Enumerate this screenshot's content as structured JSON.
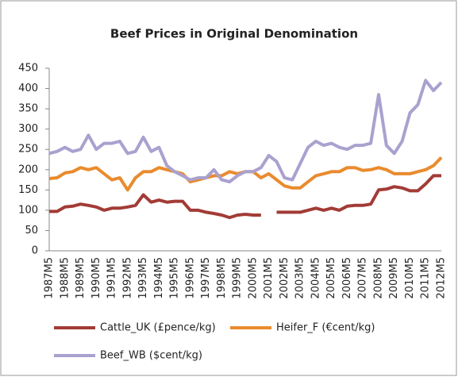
{
  "chart_data": {
    "type": "line",
    "title": "Beef Prices in Original Denomination",
    "categories": [
      "1987M5",
      null,
      "1988M5",
      null,
      "1989M5",
      null,
      "1990M5",
      null,
      "1991M5",
      null,
      "1992M5",
      null,
      "1993M5",
      null,
      "1994M5",
      null,
      "1995M5",
      null,
      "1996M5",
      null,
      "1997M5",
      null,
      "1998M5",
      null,
      "1999M5",
      null,
      "2000M5",
      null,
      "2001M5",
      null,
      "2002M5",
      null,
      "2003M5",
      null,
      "2004M5",
      null,
      "2005M5",
      null,
      "2006M5",
      null,
      "2007M5",
      null,
      "2008M5",
      null,
      "2009M5",
      null,
      "2010M5",
      null,
      "2011M5",
      null,
      "2012M5"
    ],
    "series": [
      {
        "name": "Cattle_UK (£pence/kg)",
        "color": "#a23b36",
        "values": [
          97,
          97,
          108,
          110,
          115,
          112,
          108,
          100,
          105,
          105,
          108,
          112,
          138,
          120,
          125,
          120,
          122,
          122,
          100,
          100,
          95,
          92,
          88,
          82,
          88,
          90,
          88,
          88,
          null,
          95,
          95,
          95,
          95,
          100,
          105,
          100,
          105,
          100,
          110,
          112,
          112,
          115,
          150,
          152,
          158,
          155,
          148,
          148,
          165,
          185,
          185
        ]
      },
      {
        "name": "Heifer_F (€cent/kg)",
        "color": "#e98b2e",
        "values": [
          178,
          180,
          192,
          195,
          205,
          200,
          205,
          190,
          175,
          180,
          150,
          180,
          195,
          195,
          205,
          200,
          195,
          190,
          170,
          175,
          180,
          185,
          185,
          195,
          190,
          195,
          195,
          180,
          190,
          175,
          160,
          155,
          155,
          170,
          185,
          190,
          195,
          195,
          205,
          205,
          198,
          200,
          205,
          200,
          190,
          190,
          190,
          195,
          200,
          210,
          230
        ]
      },
      {
        "name": "Beef_WB ($cent/kg)",
        "color": "#aaa1cf",
        "values": [
          240,
          245,
          255,
          245,
          250,
          285,
          250,
          265,
          265,
          270,
          240,
          245,
          280,
          245,
          255,
          210,
          195,
          185,
          175,
          180,
          180,
          200,
          175,
          170,
          185,
          195,
          195,
          205,
          235,
          220,
          180,
          175,
          215,
          255,
          270,
          260,
          265,
          255,
          250,
          260,
          260,
          265,
          385,
          260,
          240,
          270,
          340,
          360,
          420,
          395,
          415
        ]
      }
    ],
    "ylim": [
      0,
      450
    ],
    "yticks": [
      0,
      50,
      100,
      150,
      200,
      250,
      300,
      350,
      400,
      450
    ],
    "grid": false
  }
}
